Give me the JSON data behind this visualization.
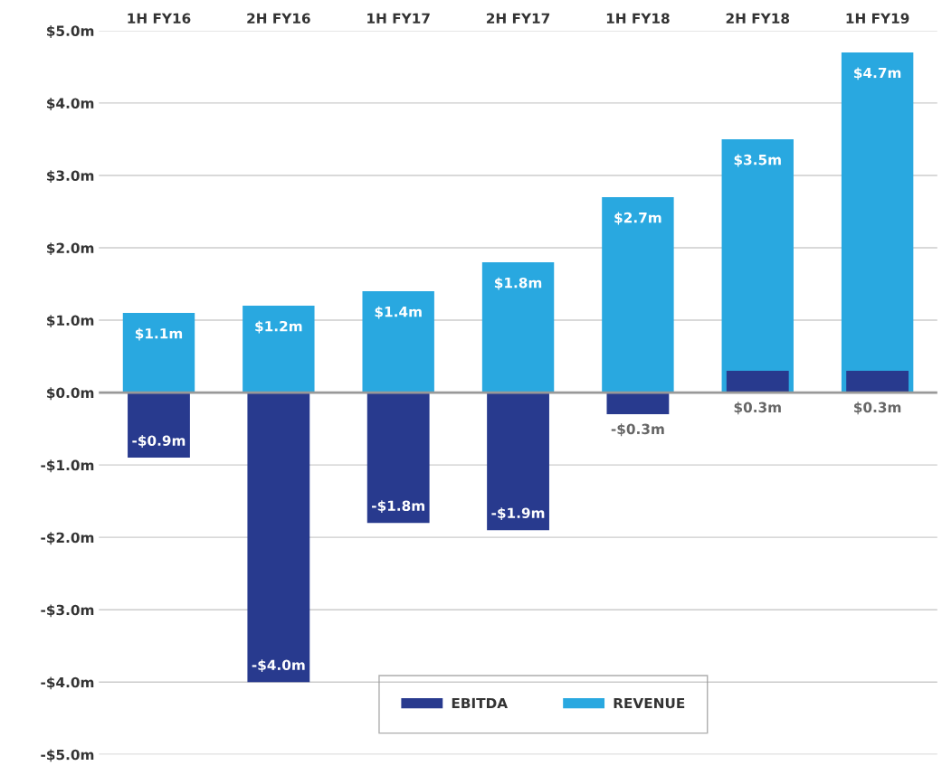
{
  "chart_data": {
    "type": "bar",
    "categories": [
      "1H FY16",
      "2H FY16",
      "1H FY17",
      "2H FY17",
      "1H FY18",
      "2H FY18",
      "1H FY19"
    ],
    "series": [
      {
        "name": "REVENUE",
        "color": "#29a8e0",
        "values": [
          1.1,
          1.2,
          1.4,
          1.8,
          2.7,
          3.5,
          4.7
        ],
        "value_labels": [
          "$1.1m",
          "$1.2m",
          "$1.4m",
          "$1.8m",
          "$2.7m",
          "$3.5m",
          "$4.7m"
        ]
      },
      {
        "name": "EBITDA",
        "color": "#283a8e",
        "values": [
          -0.9,
          -4.0,
          -1.8,
          -1.9,
          -0.3,
          0.3,
          0.3
        ],
        "value_labels": [
          "-$0.9m",
          "-$4.0m",
          "-$1.8m",
          "-$1.9m",
          "-$0.3m",
          "$0.3m",
          "$0.3m"
        ]
      }
    ],
    "ylim": [
      -5.0,
      5.0
    ],
    "yticks": [
      {
        "value": -5.0,
        "label": "-$5.0m"
      },
      {
        "value": -4.0,
        "label": "-$4.0m"
      },
      {
        "value": -3.0,
        "label": "-$3.0m"
      },
      {
        "value": -2.0,
        "label": "-$2.0m"
      },
      {
        "value": -1.0,
        "label": "-$1.0m"
      },
      {
        "value": 0.0,
        "label": "$0.0m"
      },
      {
        "value": 1.0,
        "label": "$1.0m"
      },
      {
        "value": 2.0,
        "label": "$2.0m"
      },
      {
        "value": 3.0,
        "label": "$3.0m"
      },
      {
        "value": 4.0,
        "label": "$4.0m"
      },
      {
        "value": 5.0,
        "label": "$5.0m"
      }
    ],
    "ref_lines": [
      {
        "axis": "y",
        "value": 0.0,
        "color": "#999999"
      }
    ],
    "grid": "y",
    "legend": "bottom"
  }
}
